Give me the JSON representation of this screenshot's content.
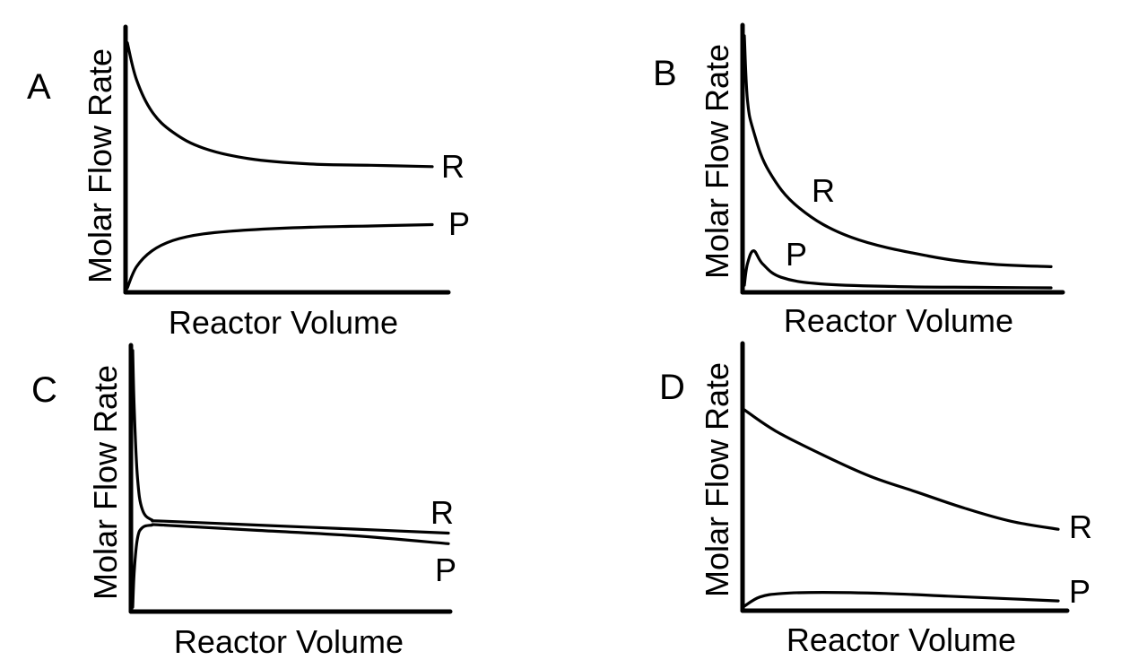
{
  "chart_data": [
    {
      "type": "line",
      "panel_label": "A",
      "xlabel": "Reactor Volume",
      "ylabel": "Molar Flow Rate",
      "xlim": [
        0,
        1
      ],
      "ylim": [
        0,
        1
      ],
      "grid": false,
      "series": [
        {
          "name": "R",
          "x": [
            0,
            0.03,
            0.08,
            0.15,
            0.25,
            0.4,
            0.6,
            0.8,
            1.0
          ],
          "y": [
            0.94,
            0.8,
            0.68,
            0.6,
            0.54,
            0.5,
            0.48,
            0.475,
            0.47
          ]
        },
        {
          "name": "P",
          "x": [
            0,
            0.03,
            0.08,
            0.15,
            0.25,
            0.4,
            0.6,
            0.8,
            1.0
          ],
          "y": [
            0.01,
            0.09,
            0.15,
            0.19,
            0.215,
            0.23,
            0.24,
            0.245,
            0.25
          ]
        }
      ]
    },
    {
      "type": "line",
      "panel_label": "B",
      "xlabel": "Reactor Volume",
      "ylabel": "Molar Flow Rate",
      "xlim": [
        0,
        1
      ],
      "ylim": [
        0,
        1
      ],
      "grid": false,
      "series": [
        {
          "name": "R",
          "x": [
            0,
            0.01,
            0.03,
            0.08,
            0.18,
            0.35,
            0.6,
            0.8,
            1.0
          ],
          "y": [
            0.96,
            0.72,
            0.6,
            0.45,
            0.31,
            0.2,
            0.13,
            0.1,
            0.09
          ]
        },
        {
          "name": "P",
          "x": [
            0,
            0.01,
            0.03,
            0.06,
            0.12,
            0.25,
            0.5,
            0.75,
            1.0
          ],
          "y": [
            0.02,
            0.1,
            0.15,
            0.1,
            0.05,
            0.025,
            0.015,
            0.012,
            0.01
          ]
        }
      ]
    },
    {
      "type": "line",
      "panel_label": "C",
      "xlabel": "Reactor Volume",
      "ylabel": "Molar Flow Rate",
      "xlim": [
        0,
        1
      ],
      "ylim": [
        0,
        1
      ],
      "grid": false,
      "series": [
        {
          "name": "R",
          "x": [
            0,
            0.005,
            0.015,
            0.03,
            0.06,
            0.1,
            0.4,
            0.7,
            1.0
          ],
          "y": [
            0.98,
            0.75,
            0.5,
            0.38,
            0.34,
            0.335,
            0.32,
            0.305,
            0.29
          ]
        },
        {
          "name": "P",
          "x": [
            0,
            0.005,
            0.015,
            0.03,
            0.06,
            0.1,
            0.4,
            0.7,
            1.0
          ],
          "y": [
            0.01,
            0.15,
            0.27,
            0.31,
            0.32,
            0.32,
            0.3,
            0.28,
            0.25
          ]
        }
      ]
    },
    {
      "type": "line",
      "panel_label": "D",
      "xlabel": "Reactor Volume",
      "ylabel": "Molar Flow Rate",
      "xlim": [
        0,
        1
      ],
      "ylim": [
        0,
        1
      ],
      "grid": false,
      "series": [
        {
          "name": "R",
          "x": [
            0,
            0.1,
            0.25,
            0.4,
            0.55,
            0.7,
            0.85,
            1.0
          ],
          "y": [
            0.75,
            0.67,
            0.58,
            0.5,
            0.44,
            0.38,
            0.33,
            0.3
          ]
        },
        {
          "name": "P",
          "x": [
            0,
            0.05,
            0.12,
            0.25,
            0.45,
            0.65,
            0.85,
            1.0
          ],
          "y": [
            0.01,
            0.045,
            0.058,
            0.062,
            0.058,
            0.048,
            0.038,
            0.03
          ]
        }
      ]
    }
  ]
}
